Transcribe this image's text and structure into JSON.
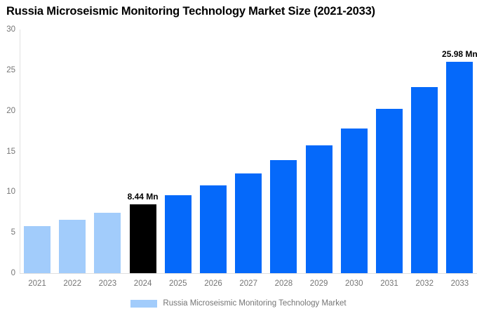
{
  "title": "Russia Microseismic Monitoring Technology Market Size (2021-2033)",
  "legend": {
    "label": "Russia Microseismic Monitoring Technology Market",
    "swatch_color": "#a2ccfb"
  },
  "chart_data": {
    "type": "bar",
    "title": "Russia Microseismic Monitoring Technology Market Size (2021-2033)",
    "unit": "Mn",
    "categories": [
      "2021",
      "2022",
      "2023",
      "2024",
      "2025",
      "2026",
      "2027",
      "2028",
      "2029",
      "2030",
      "2031",
      "2032",
      "2033"
    ],
    "values": [
      5.8,
      6.57,
      7.45,
      8.44,
      9.56,
      10.83,
      12.27,
      13.9,
      15.74,
      17.83,
      20.19,
      22.87,
      25.98
    ],
    "bar_roles": [
      "historical",
      "historical",
      "historical",
      "current",
      "forecast",
      "forecast",
      "forecast",
      "forecast",
      "forecast",
      "forecast",
      "forecast",
      "forecast",
      "forecast"
    ],
    "role_colors": {
      "historical": "#a2ccfb",
      "current": "#000000",
      "forecast": "#0569fa"
    },
    "annotations": [
      {
        "category": "2024",
        "text": "8.44 Mn"
      },
      {
        "category": "2033",
        "text": "25.98 Mn"
      }
    ],
    "xlabel": "",
    "ylabel": "",
    "ylim": [
      0,
      30
    ],
    "y_ticks": [
      0,
      5,
      10,
      15,
      20,
      25,
      30
    ],
    "grid": false,
    "legend_position": "bottom",
    "axis_line_color": "#e0e0e0",
    "tick_label_color": "#757575"
  }
}
